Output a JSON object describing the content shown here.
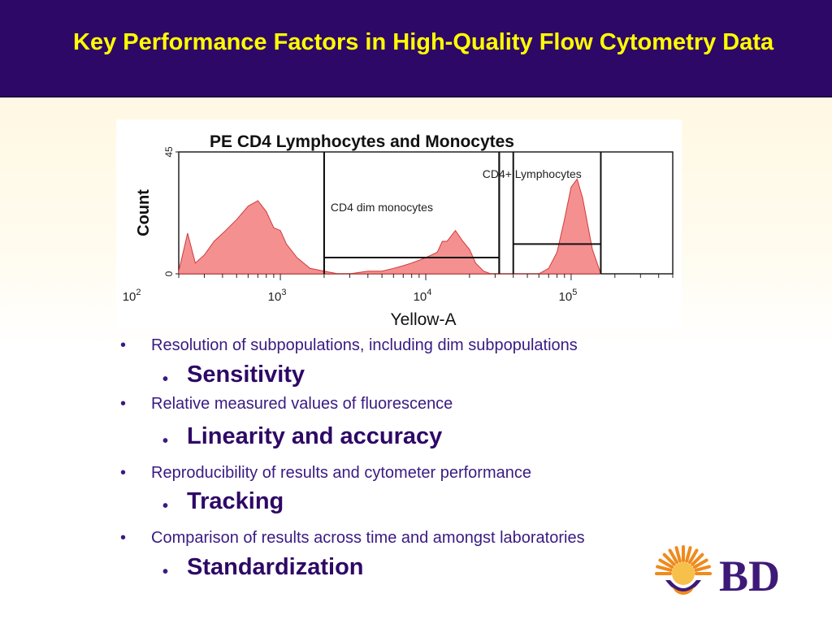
{
  "slide": {
    "title": "Key Performance Factors in High-Quality Flow Cytometry Data"
  },
  "chart_data": {
    "type": "area",
    "title": "PE CD4 Lymphocytes and Monocytes",
    "xlabel": "Yellow-A",
    "ylabel": "Count",
    "x_scale": "log",
    "xlim": [
      200,
      500000
    ],
    "ylim": [
      0,
      45
    ],
    "y_ticks": [
      "0",
      "45"
    ],
    "x_ticks": [
      {
        "base": "10",
        "exp": "2",
        "value": 100
      },
      {
        "base": "10",
        "exp": "3",
        "value": 1000
      },
      {
        "base": "10",
        "exp": "4",
        "value": 10000
      },
      {
        "base": "10",
        "exp": "5",
        "value": 100000
      }
    ],
    "fill_color": "#f49090",
    "line_color": "#d03a3a",
    "series": [
      {
        "x": [
          200,
          230,
          260,
          300,
          350,
          420,
          500,
          600,
          700,
          800,
          900,
          1000,
          1100,
          1300,
          1600,
          2000,
          2500,
          3000,
          4000,
          5000,
          6000,
          7000,
          8000,
          9000,
          10000,
          11000,
          12000,
          13000,
          14000,
          16000,
          18000,
          20000,
          22000,
          25000,
          28000,
          32000,
          40000,
          50000,
          60000,
          70000,
          80000,
          90000,
          100000,
          110000,
          120000,
          140000,
          160000
        ],
        "y": [
          1,
          15,
          4,
          7,
          12,
          16,
          20,
          25,
          27,
          23,
          17,
          16,
          11,
          6,
          2,
          1,
          0,
          0,
          1,
          1,
          2,
          3,
          4,
          5,
          6,
          7,
          8,
          12,
          12,
          16,
          12,
          9,
          4,
          1,
          0,
          0,
          0,
          0,
          0,
          2,
          8,
          20,
          32,
          35,
          28,
          9,
          0
        ]
      }
    ],
    "gates": [
      {
        "label": "",
        "x_range": [
          2000,
          32000
        ],
        "y_level": 6
      },
      {
        "label": "CD4 dim monocytes",
        "x_range": [
          2000,
          32000
        ],
        "y_level": 6
      },
      {
        "label": "CD4+ Lymphocytes",
        "x_range": [
          40000,
          160000
        ],
        "y_level": 11
      }
    ]
  },
  "bullets": [
    {
      "text": "Resolution of subpopulations, including dim subpopulations",
      "sub": "Sensitivity"
    },
    {
      "text": "Relative measured values of fluorescence",
      "sub": "Linearity and accuracy"
    },
    {
      "text": "Reproducibility of results and cytometer performance",
      "sub": "Tracking"
    },
    {
      "text": "Comparison of results across time and amongst laboratories",
      "sub": "Standardization"
    }
  ],
  "bullet_glyph": "•",
  "logo": {
    "text": "BD",
    "sun_color": "#f08a1c",
    "brand_color": "#3d1a78"
  }
}
